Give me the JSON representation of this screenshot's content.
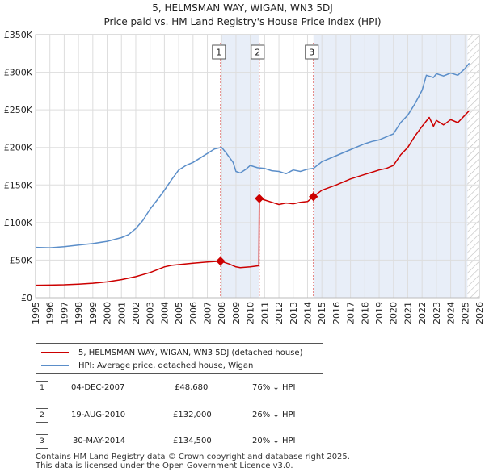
{
  "chart_data": {
    "type": "line",
    "title": "5, HELMSMAN WAY, WIGAN, WN3 5DJ",
    "subtitle": "Price paid vs. HM Land Registry's House Price Index (HPI)",
    "xlim": [
      1995,
      2026
    ],
    "ylim": [
      0,
      350000
    ],
    "x_ticks": [
      "1995",
      "1996",
      "1997",
      "1998",
      "1999",
      "2000",
      "2001",
      "2002",
      "2003",
      "2004",
      "2005",
      "2006",
      "2007",
      "2008",
      "2009",
      "2010",
      "2011",
      "2012",
      "2013",
      "2014",
      "2015",
      "2016",
      "2017",
      "2018",
      "2019",
      "2020",
      "2021",
      "2022",
      "2023",
      "2024",
      "2025",
      "2026"
    ],
    "y_ticks": [
      {
        "value": 0,
        "label": "£0"
      },
      {
        "value": 50000,
        "label": "£50K"
      },
      {
        "value": 100000,
        "label": "£100K"
      },
      {
        "value": 150000,
        "label": "£150K"
      },
      {
        "value": 200000,
        "label": "£200K"
      },
      {
        "value": 250000,
        "label": "£250K"
      },
      {
        "value": 300000,
        "label": "£300K"
      },
      {
        "value": 350000,
        "label": "£350K"
      }
    ],
    "grid": true,
    "shaded_periods": [
      [
        2007.92,
        2010.63
      ],
      [
        2014.41,
        2025.17
      ]
    ],
    "hatched_from": 2025.17,
    "colors": {
      "price": "#cc0000",
      "hpi": "#5b8ec9",
      "shade": "#e8eef8",
      "vline": "#dd6666"
    },
    "series": [
      {
        "name": "5, HELMSMAN WAY, WIGAN, WN3 5DJ (detached house)",
        "color": "#cc0000",
        "x": [
          1995,
          1996,
          1997,
          1998,
          1999,
          2000,
          2001,
          2002,
          2003,
          2004,
          2004.5,
          2005,
          2006,
          2007,
          2007.92,
          2008.5,
          2009,
          2009.3,
          2010,
          2010.6,
          2010.63,
          2011,
          2011.5,
          2012,
          2012.5,
          2013,
          2013.5,
          2014,
          2014.41,
          2015,
          2016,
          2017,
          2018,
          2018.5,
          2019,
          2019.5,
          2020,
          2020.5,
          2021,
          2021.5,
          2022,
          2022.5,
          2022.8,
          2023,
          2023.5,
          2024,
          2024.5,
          2025,
          2025.3
        ],
        "y": [
          16500,
          16800,
          17200,
          18000,
          19200,
          21000,
          24000,
          28000,
          33500,
          41000,
          43000,
          44000,
          46000,
          47500,
          48680,
          45000,
          41000,
          40000,
          41000,
          42500,
          132000,
          130000,
          127000,
          124000,
          126000,
          125000,
          127000,
          128000,
          134500,
          143000,
          150000,
          158000,
          164000,
          167000,
          170000,
          172000,
          176000,
          190000,
          200000,
          215000,
          228000,
          240000,
          228000,
          236000,
          230000,
          237000,
          233000,
          243000,
          249000
        ]
      },
      {
        "name": "HPI: Average price, detached house, Wigan",
        "color": "#5b8ec9",
        "x": [
          1995,
          1996,
          1997,
          1998,
          1999,
          2000,
          2001,
          2001.5,
          2002,
          2002.5,
          2003,
          2003.5,
          2004,
          2004.5,
          2005,
          2005.5,
          2006,
          2006.5,
          2007,
          2007.5,
          2008,
          2008.3,
          2008.8,
          2009,
          2009.3,
          2009.7,
          2010,
          2010.5,
          2011,
          2011.5,
          2012,
          2012.5,
          2013,
          2013.5,
          2014,
          2014.41,
          2015,
          2016,
          2017,
          2018,
          2018.5,
          2019,
          2020,
          2020.5,
          2021,
          2021.5,
          2022,
          2022.3,
          2022.8,
          2023,
          2023.5,
          2024,
          2024.5,
          2025,
          2025.3
        ],
        "y": [
          67000,
          66500,
          68000,
          70000,
          72000,
          75000,
          80000,
          84000,
          92000,
          103000,
          118000,
          130000,
          143000,
          157000,
          170000,
          176000,
          180000,
          186000,
          192000,
          198000,
          200000,
          193000,
          180000,
          168000,
          166000,
          171000,
          176000,
          173000,
          172000,
          169000,
          168000,
          165000,
          170000,
          168000,
          171000,
          172000,
          181000,
          189000,
          197000,
          205000,
          208000,
          210000,
          218000,
          233000,
          243000,
          258000,
          276000,
          296000,
          293000,
          298000,
          295000,
          299000,
          296000,
          305000,
          312000
        ]
      }
    ],
    "sales": [
      {
        "id": "1",
        "x": 2007.92,
        "price": 48680
      },
      {
        "id": "2",
        "x": 2010.63,
        "price": 132000
      },
      {
        "id": "3",
        "x": 2014.41,
        "price": 134500
      }
    ]
  },
  "legend": {
    "price_label": "5, HELMSMAN WAY, WIGAN, WN3 5DJ (detached house)",
    "hpi_label": "HPI: Average price, detached house, Wigan"
  },
  "transactions": [
    {
      "num": "1",
      "date": "04-DEC-2007",
      "price": "£48,680",
      "hpi": "76% ↓ HPI"
    },
    {
      "num": "2",
      "date": "19-AUG-2010",
      "price": "£132,000",
      "hpi": "26% ↓ HPI"
    },
    {
      "num": "3",
      "date": "30-MAY-2014",
      "price": "£134,500",
      "hpi": "20% ↓ HPI"
    }
  ],
  "footer": {
    "line1": "Contains HM Land Registry data © Crown copyright and database right 2025.",
    "line2": "This data is licensed under the Open Government Licence v3.0."
  }
}
